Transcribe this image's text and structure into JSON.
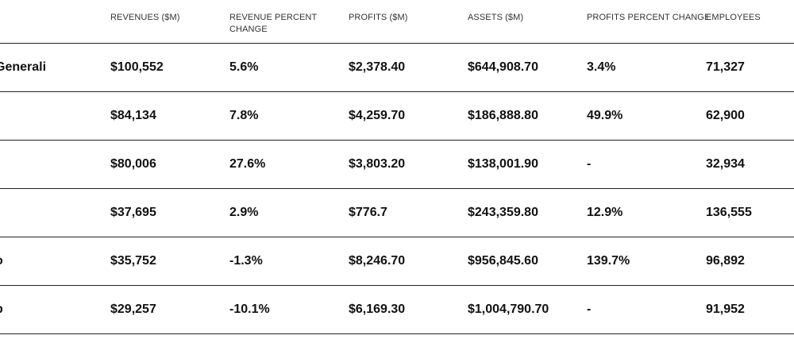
{
  "headers": {
    "revenues": "REVENUES ($M)",
    "revenue_percent_change": "REVENUE PERCENT CHANGE",
    "profits": "PROFITS ($M)",
    "assets": "ASSETS ($M)",
    "profits_percent_change": "PROFITS PERCENT CHANGE",
    "employees": "EMPLOYEES"
  },
  "rows": [
    {
      "name": "Generali",
      "revenues": "$100,552",
      "revenue_pct": "5.6%",
      "profits": "$2,378.40",
      "assets": "$644,908.70",
      "profits_pct": "3.4%",
      "employees": "71,327"
    },
    {
      "name": "",
      "revenues": "$84,134",
      "revenue_pct": "7.8%",
      "profits": "$4,259.70",
      "assets": "$186,888.80",
      "profits_pct": "49.9%",
      "employees": "62,900"
    },
    {
      "name": "",
      "revenues": "$80,006",
      "revenue_pct": "27.6%",
      "profits": "$3,803.20",
      "assets": "$138,001.90",
      "profits_pct": "-",
      "employees": "32,934"
    },
    {
      "name": "",
      "revenues": "$37,695",
      "revenue_pct": "2.9%",
      "profits": "$776.7",
      "assets": "$243,359.80",
      "profits_pct": "12.9%",
      "employees": "136,555"
    },
    {
      "name": "o",
      "revenues": "$35,752",
      "revenue_pct": "-1.3%",
      "profits": "$8,246.70",
      "assets": "$956,845.60",
      "profits_pct": "139.7%",
      "employees": "96,892"
    },
    {
      "name": "p",
      "revenues": "$29,257",
      "revenue_pct": "-10.1%",
      "profits": "$6,169.30",
      "assets": "$1,004,790.70",
      "profits_pct": "-",
      "employees": "91,952"
    }
  ]
}
